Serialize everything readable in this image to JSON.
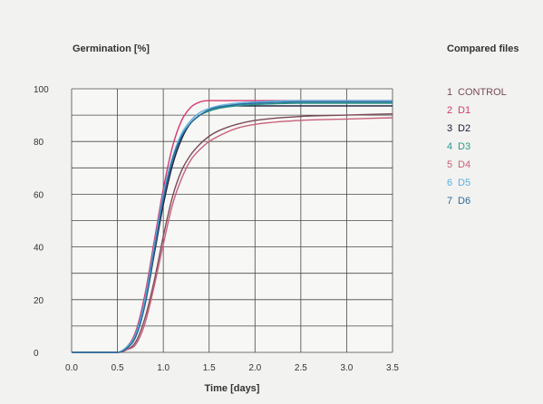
{
  "chart_data": {
    "type": "line",
    "title": "Germination [%]",
    "xlabel": "Time [days]",
    "ylabel": "Germination [%]",
    "legend_title": "Compared files",
    "legend_position": "right",
    "grid": true,
    "xlim": [
      0.0,
      3.5
    ],
    "ylim": [
      0,
      100
    ],
    "x_ticks": [
      "0.0",
      "0.5",
      "1.0",
      "1.5",
      "2.0",
      "2.5",
      "3.0",
      "3.5"
    ],
    "y_ticks": [
      "0",
      "20",
      "40",
      "60",
      "80",
      "100"
    ],
    "x": [
      0.0,
      0.5,
      0.6,
      0.7,
      0.8,
      0.9,
      1.0,
      1.1,
      1.2,
      1.3,
      1.4,
      1.5,
      1.6,
      1.8,
      2.0,
      2.5,
      3.0,
      3.5
    ],
    "series": [
      {
        "number": "1",
        "name": "CONTROL",
        "color": "#7a4a58",
        "values": [
          0,
          0,
          1,
          4,
          13,
          27,
          44,
          59,
          69,
          75,
          79,
          82,
          84,
          86.5,
          88,
          89.5,
          90,
          90.5
        ]
      },
      {
        "number": "2",
        "name": "D1",
        "color": "#d23a72",
        "values": [
          0,
          0,
          2,
          8,
          22,
          42,
          62,
          78,
          88,
          93,
          95,
          95.5,
          95.5,
          95.5,
          95.5,
          95.5,
          95.5,
          95.5
        ]
      },
      {
        "number": "3",
        "name": "D2",
        "color": "#1a1a3a",
        "values": [
          0,
          0,
          1.5,
          6,
          18,
          37,
          56,
          71,
          81,
          87,
          90,
          92,
          93,
          93.5,
          93.5,
          93.5,
          93.5,
          93.5
        ]
      },
      {
        "number": "4",
        "name": "D3",
        "color": "#2a9a8a",
        "values": [
          0,
          0,
          2,
          7,
          20,
          40,
          59,
          73,
          82,
          87,
          90,
          91.5,
          92.5,
          93.5,
          94,
          94.5,
          94.5,
          94.5
        ]
      },
      {
        "number": "5",
        "name": "D4",
        "color": "#c8607a",
        "values": [
          0,
          0,
          1,
          3,
          11,
          25,
          41,
          56,
          66,
          73,
          77,
          80,
          82,
          85,
          86.5,
          88,
          88.5,
          89
        ]
      },
      {
        "number": "6",
        "name": "D5",
        "color": "#5ab0e0",
        "values": [
          0,
          0,
          2,
          7,
          20,
          40,
          60,
          74,
          83,
          88,
          91,
          92.5,
          93.5,
          94.5,
          95,
          95.5,
          95.5,
          95.5
        ]
      },
      {
        "number": "7",
        "name": "D6",
        "color": "#2a6a9a",
        "values": [
          0,
          0,
          1.5,
          6,
          18,
          38,
          58,
          73,
          82,
          87,
          90,
          92,
          93,
          94,
          94.5,
          95,
          95,
          95
        ]
      }
    ]
  }
}
